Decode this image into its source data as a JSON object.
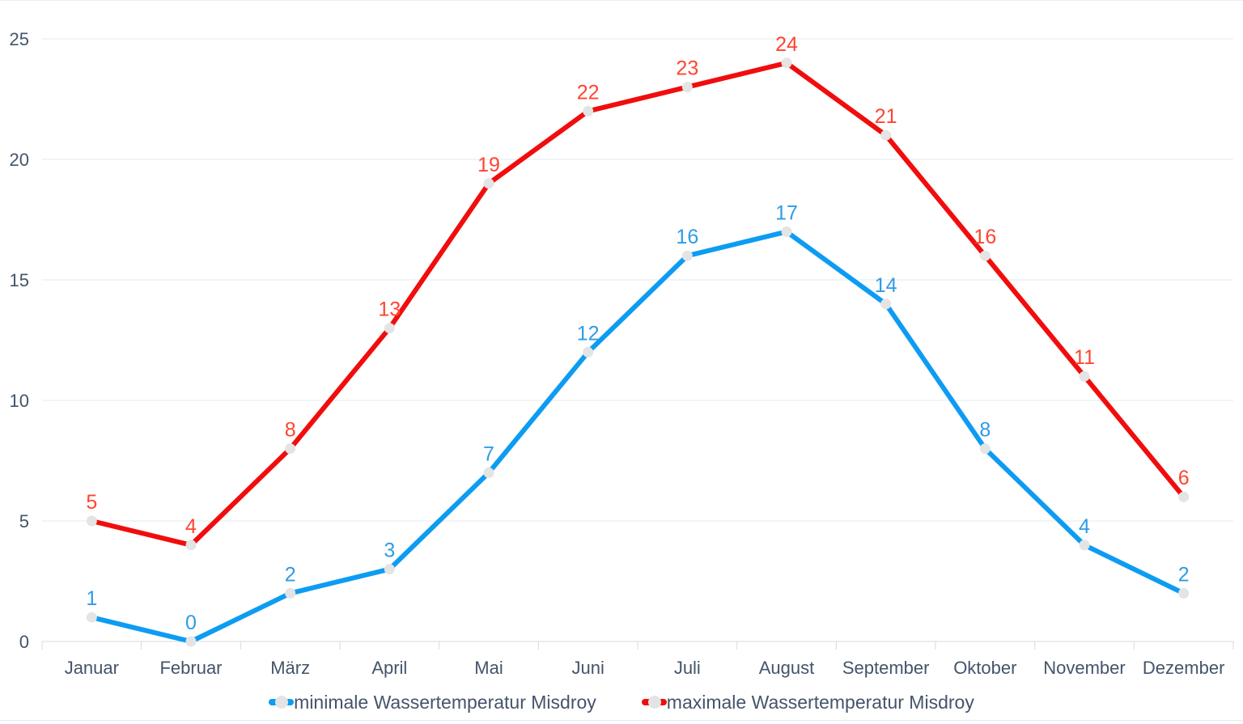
{
  "chart_data": {
    "type": "line",
    "title": "",
    "xlabel": "",
    "ylabel": "",
    "categories": [
      "Januar",
      "Februar",
      "März",
      "April",
      "Mai",
      "Juni",
      "Juli",
      "August",
      "September",
      "Oktober",
      "November",
      "Dezember"
    ],
    "series": [
      {
        "name": "minimale Wassertemperatur Misdroy",
        "values": [
          1,
          0,
          2,
          3,
          7,
          12,
          16,
          17,
          14,
          8,
          4,
          2
        ],
        "line_color": "#0d9cf2",
        "label_color": "#2d9ce5"
      },
      {
        "name": "maximale Wassertemperatur Misdroy",
        "values": [
          5,
          4,
          8,
          13,
          19,
          22,
          23,
          24,
          21,
          16,
          11,
          6
        ],
        "line_color": "#f10d0d",
        "label_color": "#ff4430"
      }
    ],
    "y_ticks": [
      0,
      5,
      10,
      15,
      20,
      25
    ],
    "ylim": [
      0,
      25
    ],
    "grid": true,
    "legend_position": "bottom",
    "marker_color": "#e4e4e4",
    "axis_text_color": "#44546a",
    "gridline_color": "#e5e8ec",
    "axis_line_color": "#d6dade",
    "data_labels_shown": true
  }
}
